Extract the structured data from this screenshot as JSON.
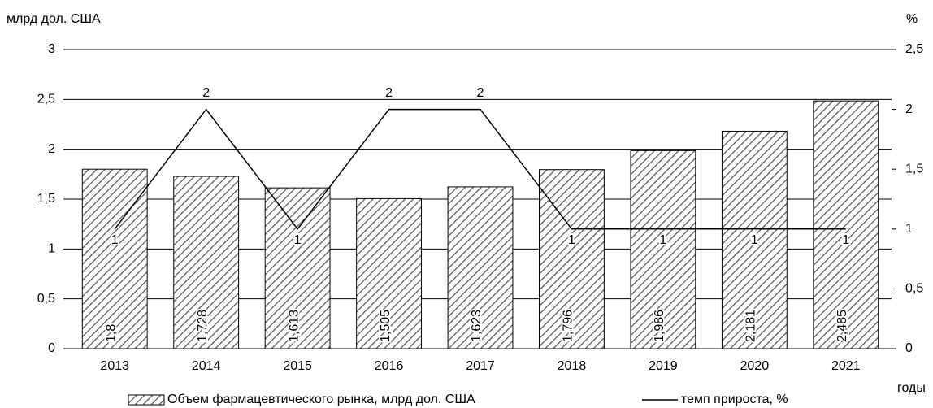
{
  "chart_data": {
    "type": "bar",
    "y_label": "млрд дол. США",
    "y2_label": "%",
    "x_label": "годы",
    "categories": [
      "2013",
      "2014",
      "2015",
      "2016",
      "2017",
      "2018",
      "2019",
      "2020",
      "2021"
    ],
    "series": [
      {
        "name": "Объем фармацевтического рынка, млрд дол. США",
        "type": "bar",
        "color": "#ffffff",
        "values": [
          1.8,
          1.728,
          1.613,
          1.505,
          1.623,
          1.796,
          1.986,
          2.181,
          2.485
        ],
        "value_labels": [
          "1,8",
          "1,728",
          "1,613",
          "1,505",
          "1,623",
          "1,796",
          "1,986",
          "2,181",
          "2,485"
        ]
      },
      {
        "name": "темп прироста, %",
        "type": "line",
        "axis": "y2",
        "color": "#000000",
        "values": [
          1,
          2,
          1,
          2,
          2,
          1,
          1,
          1,
          1
        ]
      }
    ],
    "ylim": [
      0,
      3
    ],
    "yticks": [
      0,
      {
        "value": 0.5,
        "label": "0,5"
      },
      1,
      {
        "value": 1.5,
        "label": "1,5"
      },
      2,
      {
        "value": 2.5,
        "label": "2,5"
      },
      3
    ],
    "y2lim": [
      0,
      2.5
    ],
    "y2ticks": [
      0,
      {
        "value": 0.5,
        "label": "0,5"
      },
      1,
      {
        "value": 1.5,
        "label": "1,5"
      },
      2,
      {
        "value": 2.5,
        "label": "2,5"
      }
    ],
    "grid": true,
    "legend": "bottom"
  }
}
